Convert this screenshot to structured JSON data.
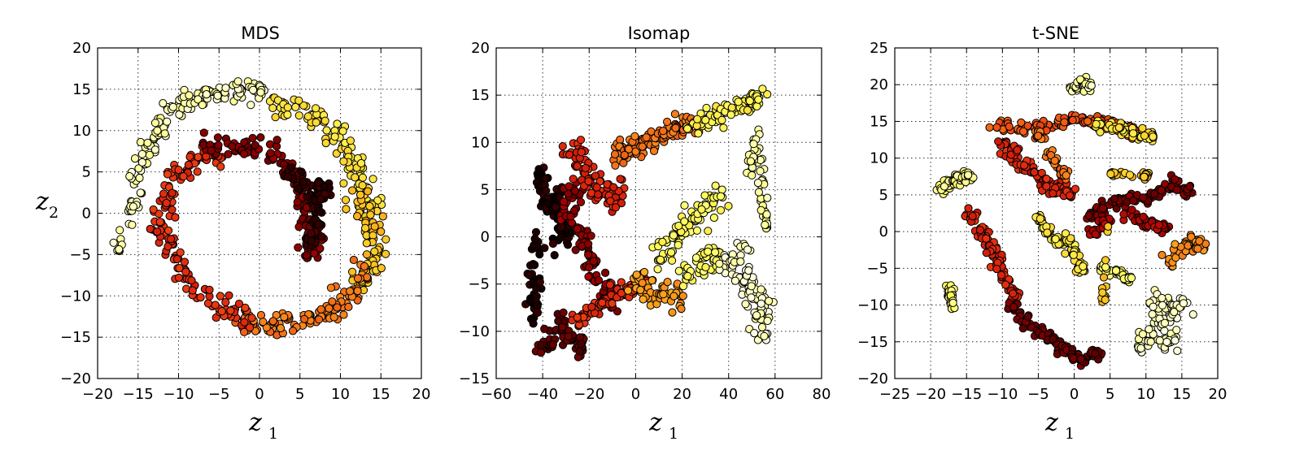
{
  "figure": {
    "colormap": [
      "#000000",
      "#5a0000",
      "#a80000",
      "#e83010",
      "#f6801a",
      "#fcc820",
      "#ffff60",
      "#ffffe0"
    ],
    "marker_edge_color": "#000000"
  },
  "chart_data": [
    {
      "type": "scatter",
      "title": "MDS",
      "xlabel": "z",
      "xlabel_sub": "1",
      "ylabel": "z",
      "ylabel_sub": "2",
      "xlim": [
        -20,
        20
      ],
      "ylim": [
        -20,
        20
      ],
      "xticks": [
        -20,
        -15,
        -10,
        -5,
        0,
        5,
        10,
        15,
        20
      ],
      "yticks": [
        -20,
        -15,
        -10,
        -5,
        0,
        5,
        10,
        15,
        20
      ],
      "xtick_labels": [
        "−20",
        "−15",
        "−10",
        "−5",
        "0",
        "5",
        "10",
        "15",
        "20"
      ],
      "ytick_labels": [
        "−20",
        "−15",
        "−10",
        "−5",
        "0",
        "5",
        "10",
        "15",
        "20"
      ],
      "grid": true,
      "color_scale": "hot (value 0 = black, 1 = white)",
      "clusters": [
        {
          "color_value": 0.95,
          "x": [
            -17.2,
            -15.8,
            -14.8,
            -13.5,
            -12.2,
            -10.8,
            -9.2,
            -7.2,
            -5.0,
            -2.5,
            0.0
          ],
          "y": [
            -4.0,
            0.5,
            4.5,
            8.0,
            10.5,
            12.5,
            13.5,
            14.2,
            14.5,
            14.8,
            15.0
          ],
          "spread": [
            0.9,
            1.0
          ]
        },
        {
          "color_value": 0.78,
          "x": [
            2.0,
            4.5,
            7.0,
            9.0,
            10.5,
            11.8,
            12.8,
            13.5
          ],
          "y": [
            13.0,
            12.5,
            11.5,
            10.0,
            8.0,
            6.0,
            3.5,
            1.0
          ],
          "spread": [
            1.2,
            1.2
          ]
        },
        {
          "color_value": 0.7,
          "x": [
            12.5,
            13.2,
            13.8,
            14.2,
            14.0,
            13.0
          ],
          "y": [
            2.0,
            0.0,
            -2.0,
            -4.0,
            -6.0,
            -8.0
          ],
          "spread": [
            1.2,
            1.2
          ]
        },
        {
          "color_value": 0.55,
          "x": [
            13.0,
            11.5,
            10.0,
            8.2,
            6.0,
            3.5,
            1.0,
            -1.5
          ],
          "y": [
            -7.5,
            -9.5,
            -11.0,
            -12.0,
            -12.5,
            -13.0,
            -13.5,
            -13.0
          ],
          "spread": [
            1.1,
            1.2
          ]
        },
        {
          "color_value": 0.42,
          "x": [
            -2.0,
            -4.5,
            -7.0,
            -9.0,
            -10.5,
            -11.5,
            -12.0,
            -11.5,
            -10.0,
            -8.0,
            -6.0
          ],
          "y": [
            -12.5,
            -11.5,
            -10.0,
            -8.0,
            -5.5,
            -3.0,
            -0.5,
            2.0,
            4.5,
            6.5,
            7.5
          ],
          "spread": [
            1.2,
            1.3
          ]
        },
        {
          "color_value": 0.22,
          "x": [
            -6.0,
            -3.5,
            -1.0,
            1.5,
            3.5,
            5.0,
            6.0,
            6.5,
            6.8,
            6.5
          ],
          "y": [
            8.0,
            8.5,
            8.0,
            7.0,
            5.5,
            3.0,
            0.5,
            -1.5,
            -3.0,
            -4.5
          ],
          "spread": [
            1.2,
            1.0
          ]
        },
        {
          "color_value": 0.08,
          "x": [
            3.5,
            5.5,
            7.0,
            8.0,
            7.5,
            6.5
          ],
          "y": [
            5.0,
            3.0,
            1.0,
            3.0,
            -1.0,
            -3.0
          ],
          "spread": [
            0.8,
            0.9
          ]
        }
      ]
    },
    {
      "type": "scatter",
      "title": "Isomap",
      "xlabel": "z",
      "xlabel_sub": "1",
      "ylabel": "",
      "xlim": [
        -60,
        80
      ],
      "ylim": [
        -15,
        20
      ],
      "xticks": [
        -60,
        -40,
        -20,
        0,
        20,
        40,
        60,
        80
      ],
      "yticks": [
        -15,
        -10,
        -5,
        0,
        5,
        10,
        15,
        20
      ],
      "xtick_labels": [
        "−60",
        "−40",
        "−20",
        "0",
        "20",
        "40",
        "60",
        "80"
      ],
      "ytick_labels": [
        "−15",
        "−10",
        "−5",
        "0",
        "5",
        "10",
        "15",
        "20"
      ],
      "grid": true,
      "color_scale": "hot (value 0 = black, 1 = white)",
      "clusters": [
        {
          "color_value": 0.05,
          "x": [
            -42,
            -40,
            -38,
            -36,
            -34,
            -32,
            -30,
            -42,
            -44,
            -44
          ],
          "y": [
            6.5,
            5.0,
            3.5,
            2.5,
            4.0,
            1.5,
            0.5,
            -1.0,
            -4.0,
            -7.5
          ],
          "spread": [
            2.5,
            1.2
          ]
        },
        {
          "color_value": 0.25,
          "x": [
            -30,
            -26,
            -22,
            -18,
            -14,
            -12,
            -28
          ],
          "y": [
            3.0,
            1.0,
            -1.0,
            -3.0,
            -5.0,
            -7.0,
            5.0
          ],
          "spread": [
            3.0,
            1.2
          ]
        },
        {
          "color_value": 0.4,
          "x": [
            -28,
            -24,
            -20,
            -16,
            -12,
            -8
          ],
          "y": [
            9.0,
            7.5,
            6.5,
            5.0,
            4.0,
            4.5
          ],
          "spread": [
            3.0,
            1.3
          ]
        },
        {
          "color_value": 0.15,
          "x": [
            -40,
            -36,
            -32,
            -28,
            -24
          ],
          "y": [
            -12.0,
            -11.0,
            -9.5,
            -10.5,
            -11.5
          ],
          "spread": [
            2.5,
            1.0
          ]
        },
        {
          "color_value": 0.42,
          "x": [
            -24,
            -18,
            -12,
            -6,
            0,
            4
          ],
          "y": [
            -8.5,
            -7.5,
            -6.5,
            -6.0,
            -5.5,
            -5.0
          ],
          "spread": [
            3.0,
            1.0
          ]
        },
        {
          "color_value": 0.55,
          "x": [
            -8,
            -4,
            0,
            4,
            8,
            14,
            18,
            24
          ],
          "y": [
            8.5,
            9.0,
            9.5,
            10.0,
            10.5,
            11.0,
            11.5,
            12.0
          ],
          "spread": [
            3.0,
            1.0
          ]
        },
        {
          "color_value": 0.62,
          "x": [
            0,
            6,
            12,
            18
          ],
          "y": [
            -5.0,
            -5.5,
            -6.0,
            -6.5
          ],
          "spread": [
            3.0,
            1.2
          ]
        },
        {
          "color_value": 0.82,
          "x": [
            24,
            30,
            36,
            42,
            48,
            52
          ],
          "y": [
            11.5,
            12.5,
            13.0,
            13.5,
            14.0,
            14.5
          ],
          "spread": [
            3.0,
            0.8
          ]
        },
        {
          "color_value": 0.85,
          "x": [
            10,
            16,
            20,
            24,
            30,
            36,
            22,
            28,
            34
          ],
          "y": [
            -2.0,
            -1.0,
            0.5,
            2.0,
            3.0,
            4.0,
            -4.0,
            -3.0,
            -2.0
          ],
          "spread": [
            3.0,
            1.2
          ]
        },
        {
          "color_value": 0.97,
          "x": [
            40,
            44,
            48,
            52,
            56,
            46,
            54
          ],
          "y": [
            -3.0,
            -4.0,
            -5.0,
            -6.0,
            -8.0,
            -2.0,
            -10.0
          ],
          "spread": [
            3.0,
            1.2
          ]
        },
        {
          "color_value": 0.93,
          "x": [
            52,
            54,
            56,
            50
          ],
          "y": [
            10.0,
            6.0,
            2.0,
            8.0
          ],
          "spread": [
            1.5,
            1.5
          ]
        }
      ]
    },
    {
      "type": "scatter",
      "title": "t-SNE",
      "xlabel": "z",
      "xlabel_sub": "1",
      "ylabel": "",
      "xlim": [
        -25,
        20
      ],
      "ylim": [
        -20,
        25
      ],
      "xticks": [
        -25,
        -20,
        -15,
        -10,
        -5,
        0,
        5,
        10,
        15,
        20
      ],
      "yticks": [
        -20,
        -15,
        -10,
        -5,
        0,
        5,
        10,
        15,
        20,
        25
      ],
      "xtick_labels": [
        "−25",
        "−20",
        "−15",
        "−10",
        "−5",
        "0",
        "5",
        "10",
        "15",
        "20"
      ],
      "ytick_labels": [
        "−20",
        "−15",
        "−10",
        "−5",
        "0",
        "5",
        "10",
        "15",
        "20",
        "25"
      ],
      "grid": true,
      "color_scale": "hot (value 0 = black, 1 = white)",
      "clusters": [
        {
          "color_value": 0.9,
          "x": [
            -18.5,
            -17.5,
            -16.5,
            -15.5,
            -14.8
          ],
          "y": [
            5.8,
            6.5,
            7.0,
            7.3,
            7.6
          ],
          "spread": [
            0.6,
            0.6
          ]
        },
        {
          "color_value": 0.88,
          "x": [
            -17.5,
            -17.0
          ],
          "y": [
            -8.0,
            -9.5
          ],
          "spread": [
            0.5,
            0.8
          ]
        },
        {
          "color_value": 0.94,
          "x": [
            0.0,
            1.0,
            2.0
          ],
          "y": [
            19.5,
            20.3,
            19.8
          ],
          "spread": [
            0.6,
            0.5
          ]
        },
        {
          "color_value": 0.5,
          "x": [
            -10.0,
            -7.0,
            -4.5,
            -2.0,
            0.0,
            2.0,
            4.0,
            6.0,
            8.0
          ],
          "y": [
            14.5,
            14.0,
            14.5,
            15.0,
            15.5,
            15.0,
            14.8,
            14.5,
            13.5
          ],
          "spread": [
            0.8,
            0.7
          ]
        },
        {
          "color_value": 0.78,
          "x": [
            3.5,
            6.0,
            8.5,
            10.5
          ],
          "y": [
            14.8,
            14.0,
            13.5,
            12.8
          ],
          "spread": [
            0.8,
            0.7
          ]
        },
        {
          "color_value": 0.4,
          "x": [
            -10.0,
            -8.5,
            -7.0,
            -5.5,
            -4.0,
            -2.5,
            -1.0
          ],
          "y": [
            12.0,
            10.5,
            9.0,
            7.5,
            6.5,
            6.0,
            5.5
          ],
          "spread": [
            0.7,
            0.9
          ]
        },
        {
          "color_value": 0.55,
          "x": [
            -5.0,
            -3.0,
            -1.5
          ],
          "y": [
            13.0,
            10.0,
            8.0
          ],
          "spread": [
            0.6,
            0.8
          ]
        },
        {
          "color_value": 0.4,
          "x": [
            -14.5,
            -13.0,
            -11.5,
            -10.5,
            -9.5,
            -8.5
          ],
          "y": [
            2.0,
            0.0,
            -2.0,
            -4.5,
            -6.5,
            -8.5
          ],
          "spread": [
            0.8,
            0.7
          ]
        },
        {
          "color_value": 0.18,
          "x": [
            -8.5,
            -7.0,
            -5.0,
            -3.0,
            -1.5,
            0.0,
            1.5,
            3.0
          ],
          "y": [
            -10.0,
            -12.0,
            -13.5,
            -15.0,
            -16.0,
            -17.0,
            -17.5,
            -16.5
          ],
          "spread": [
            0.8,
            0.6
          ]
        },
        {
          "color_value": 0.8,
          "x": [
            -5.0,
            -4.0,
            -2.5,
            -1.0,
            0.0,
            1.0
          ],
          "y": [
            2.0,
            0.0,
            -1.5,
            -1.0,
            -3.0,
            -5.0
          ],
          "spread": [
            0.6,
            0.6
          ]
        },
        {
          "color_value": 0.88,
          "x": [
            4.0,
            6.0,
            7.5
          ],
          "y": [
            -5.0,
            -5.5,
            -6.5
          ],
          "spread": [
            0.5,
            0.4
          ]
        },
        {
          "color_value": 0.2,
          "x": [
            2.0,
            4.0,
            6.0,
            8.0,
            10.0,
            12.0,
            14.0,
            16.0
          ],
          "y": [
            2.0,
            3.0,
            4.0,
            4.5,
            4.5,
            5.5,
            6.5,
            5.5
          ],
          "spread": [
            0.6,
            0.7
          ]
        },
        {
          "color_value": 0.3,
          "x": [
            2.5,
            4.0,
            8.0,
            10.0,
            12.0
          ],
          "y": [
            0.0,
            1.0,
            2.0,
            1.0,
            0.5
          ],
          "spread": [
            0.7,
            0.7
          ]
        },
        {
          "color_value": 0.6,
          "x": [
            13.5,
            15.0,
            16.5,
            17.5
          ],
          "y": [
            -4.0,
            -2.5,
            -1.5,
            -2.0
          ],
          "spread": [
            0.7,
            0.8
          ]
        },
        {
          "color_value": 0.97,
          "x": [
            9.0,
            10.5,
            12.0,
            13.5,
            15.0,
            11.0,
            13.0
          ],
          "y": [
            -15.5,
            -14.0,
            -12.5,
            -11.0,
            -10.0,
            -9.5,
            -15.0
          ],
          "spread": [
            1.0,
            1.2
          ]
        },
        {
          "color_value": 0.7,
          "x": [
            4.0,
            5.5,
            10.0
          ],
          "y": [
            -9.0,
            8.0,
            7.5
          ],
          "spread": [
            0.4,
            0.4
          ]
        }
      ]
    }
  ]
}
